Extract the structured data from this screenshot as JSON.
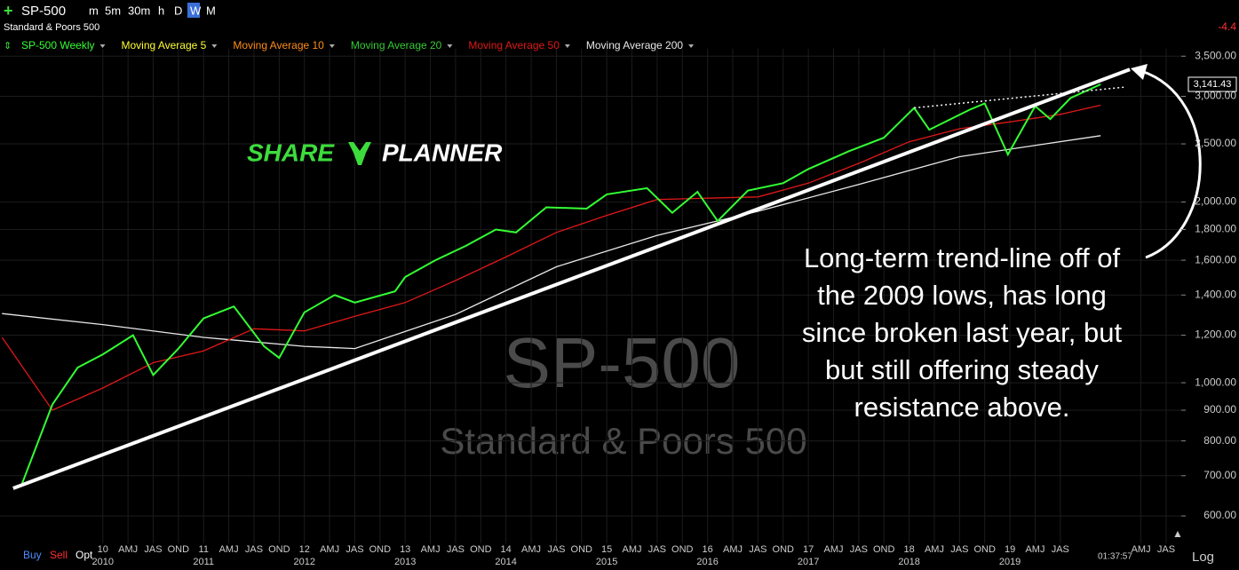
{
  "toolbar": {
    "symbol": "SP-500",
    "intervals": [
      "m",
      "5m",
      "30m",
      "h",
      "D",
      "W",
      "M"
    ],
    "description": "Standard & Poors 500",
    "change": "-4.4"
  },
  "bottom_bar": {
    "buy": "Buy",
    "sell": "Sell",
    "opt": "Opt",
    "time": "01:37:57",
    "scale": "Log"
  },
  "logo": {
    "left": "SHARE",
    "right": "PLANNER"
  },
  "watermark": {
    "symbol": "SP-500",
    "name": "Standard & Poors 500"
  },
  "chart_data": {
    "type": "line",
    "log_scale": true,
    "grid": true,
    "indicators": [
      {
        "name": "Moving Average 5",
        "color": "#ffff33"
      },
      {
        "name": "Moving Average 10",
        "color": "#ff8c1a"
      },
      {
        "name": "Moving Average 20",
        "color": "#33cc33"
      }
    ],
    "series": [
      {
        "name": "SP-500 Weekly",
        "color": "#33ff33",
        "x": [
          2009.2,
          2009.5,
          2009.75,
          2010.0,
          2010.3,
          2010.5,
          2010.75,
          2011.0,
          2011.3,
          2011.6,
          2011.75,
          2012.0,
          2012.3,
          2012.5,
          2012.9,
          2013.0,
          2013.3,
          2013.6,
          2013.9,
          2014.1,
          2014.4,
          2014.8,
          2015.0,
          2015.4,
          2015.65,
          2015.9,
          2016.1,
          2016.4,
          2016.75,
          2017.0,
          2017.4,
          2017.75,
          2018.05,
          2018.2,
          2018.6,
          2018.75,
          2018.98,
          2019.25,
          2019.4,
          2019.6,
          2019.9
        ],
        "values": [
          680,
          920,
          1060,
          1115,
          1200,
          1030,
          1140,
          1280,
          1340,
          1150,
          1100,
          1310,
          1400,
          1360,
          1420,
          1500,
          1600,
          1690,
          1800,
          1780,
          1960,
          1950,
          2060,
          2110,
          1920,
          2080,
          1860,
          2090,
          2150,
          2270,
          2430,
          2560,
          2870,
          2640,
          2850,
          2920,
          2400,
          2890,
          2750,
          2980,
          3141.43
        ]
      },
      {
        "name": "Moving Average 50",
        "color": "#e01818",
        "x": [
          2009.0,
          2009.5,
          2010.0,
          2010.5,
          2011.0,
          2011.5,
          2012.0,
          2012.5,
          2013.0,
          2013.5,
          2014.0,
          2014.5,
          2015.0,
          2015.5,
          2016.0,
          2016.5,
          2017.0,
          2017.5,
          2018.0,
          2018.5,
          2019.0,
          2019.5,
          2019.9
        ],
        "values": [
          1190,
          900,
          980,
          1080,
          1130,
          1230,
          1220,
          1290,
          1360,
          1480,
          1620,
          1780,
          1900,
          2020,
          2030,
          2040,
          2150,
          2320,
          2520,
          2650,
          2720,
          2800,
          2900
        ]
      },
      {
        "name": "Moving Average 200",
        "color": "#e8e8e8",
        "x": [
          2009.0,
          2010.0,
          2011.0,
          2012.0,
          2012.5,
          2013.5,
          2014.5,
          2015.5,
          2016.5,
          2017.5,
          2018.5,
          2019.9
        ],
        "values": [
          1304,
          1250,
          1190,
          1150,
          1140,
          1300,
          1560,
          1760,
          1930,
          2140,
          2380,
          2580
        ]
      }
    ],
    "last_price_label": "3,141.43",
    "trendlines": [
      {
        "style": "solid",
        "x": [
          2009.11,
          2020.19
        ],
        "values": [
          667,
          3326
        ]
      },
      {
        "style": "dotted",
        "x": [
          2018.05,
          2020.15
        ],
        "values": [
          2870,
          3110
        ]
      }
    ],
    "annotation_lines": [
      "Long-term trend-line off of",
      "the 2009 lows, has long",
      "since broken last year, but",
      "but still offering steady",
      "resistance above."
    ],
    "xlim": [
      2008.98,
      2020.7
    ],
    "ylim": [
      540,
      3600
    ],
    "yticks": [
      {
        "value": 600,
        "label": "600.00"
      },
      {
        "value": 700,
        "label": "700.00"
      },
      {
        "value": 800,
        "label": "800.00"
      },
      {
        "value": 900,
        "label": "900.00"
      },
      {
        "value": 1000,
        "label": "1,000.00"
      },
      {
        "value": 1200,
        "label": "1,200.00"
      },
      {
        "value": 1400,
        "label": "1,400.00"
      },
      {
        "value": 1600,
        "label": "1,600.00"
      },
      {
        "value": 1800,
        "label": "1,800.00"
      },
      {
        "value": 2000,
        "label": "2,000.00"
      },
      {
        "value": 2500,
        "label": "2,500.00"
      },
      {
        "value": 3000,
        "label": "3,000.00"
      },
      {
        "value": 3500,
        "label": "3,500.00"
      }
    ],
    "xticks": [
      {
        "value": 2010,
        "label": "10"
      },
      {
        "value": 2010.25,
        "label": "AMJ"
      },
      {
        "value": 2010.5,
        "label": "JAS"
      },
      {
        "value": 2010.75,
        "label": "OND"
      },
      {
        "value": 2011,
        "label": "11"
      },
      {
        "value": 2011.25,
        "label": "AMJ"
      },
      {
        "value": 2011.5,
        "label": "JAS"
      },
      {
        "value": 2011.75,
        "label": "OND"
      },
      {
        "value": 2012,
        "label": "12"
      },
      {
        "value": 2012.25,
        "label": "AMJ"
      },
      {
        "value": 2012.5,
        "label": "JAS"
      },
      {
        "value": 2012.75,
        "label": "OND"
      },
      {
        "value": 2013,
        "label": "13"
      },
      {
        "value": 2013.25,
        "label": "AMJ"
      },
      {
        "value": 2013.5,
        "label": "JAS"
      },
      {
        "value": 2013.75,
        "label": "OND"
      },
      {
        "value": 2014,
        "label": "14"
      },
      {
        "value": 2014.25,
        "label": "AMJ"
      },
      {
        "value": 2014.5,
        "label": "JAS"
      },
      {
        "value": 2014.75,
        "label": "OND"
      },
      {
        "value": 2015,
        "label": "15"
      },
      {
        "value": 2015.25,
        "label": "AMJ"
      },
      {
        "value": 2015.5,
        "label": "JAS"
      },
      {
        "value": 2015.75,
        "label": "OND"
      },
      {
        "value": 2016,
        "label": "16"
      },
      {
        "value": 2016.25,
        "label": "AMJ"
      },
      {
        "value": 2016.5,
        "label": "JAS"
      },
      {
        "value": 2016.75,
        "label": "OND"
      },
      {
        "value": 2017,
        "label": "17"
      },
      {
        "value": 2017.25,
        "label": "AMJ"
      },
      {
        "value": 2017.5,
        "label": "JAS"
      },
      {
        "value": 2017.75,
        "label": "OND"
      },
      {
        "value": 2018,
        "label": "18"
      },
      {
        "value": 2018.25,
        "label": "AMJ"
      },
      {
        "value": 2018.5,
        "label": "JAS"
      },
      {
        "value": 2018.75,
        "label": "OND"
      },
      {
        "value": 2019,
        "label": "19"
      },
      {
        "value": 2019.25,
        "label": "AMJ"
      },
      {
        "value": 2019.5,
        "label": "JAS"
      },
      {
        "value": 2020.3,
        "label": "AMJ"
      },
      {
        "value": 2020.55,
        "label": "JAS"
      }
    ],
    "year_labels": [
      {
        "value": 2010,
        "label": "2010"
      },
      {
        "value": 2011,
        "label": "2011"
      },
      {
        "value": 2012,
        "label": "2012"
      },
      {
        "value": 2013,
        "label": "2013"
      },
      {
        "value": 2014,
        "label": "2014"
      },
      {
        "value": 2015,
        "label": "2015"
      },
      {
        "value": 2016,
        "label": "2016"
      },
      {
        "value": 2017,
        "label": "2017"
      },
      {
        "value": 2018,
        "label": "2018"
      },
      {
        "value": 2019,
        "label": "2019"
      }
    ]
  }
}
